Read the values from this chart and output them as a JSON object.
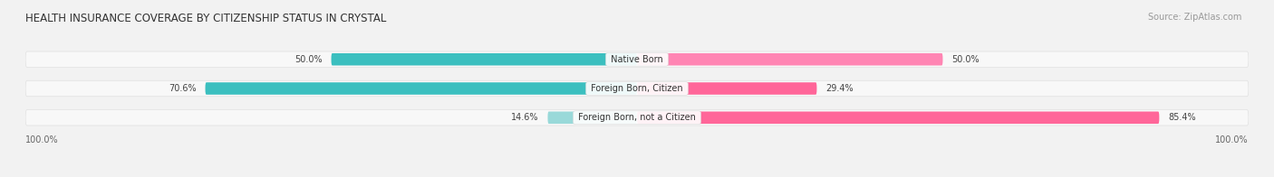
{
  "title": "HEALTH INSURANCE COVERAGE BY CITIZENSHIP STATUS IN CRYSTAL",
  "source": "Source: ZipAtlas.com",
  "categories": [
    "Native Born",
    "Foreign Born, Citizen",
    "Foreign Born, not a Citizen"
  ],
  "with_coverage": [
    50.0,
    70.6,
    14.6
  ],
  "without_coverage": [
    50.0,
    29.4,
    85.4
  ],
  "colors_with": [
    "#3bbfbf",
    "#3bbfbf",
    "#99d9d9"
  ],
  "colors_without": [
    "#ff85b3",
    "#ff6699",
    "#ff6699"
  ],
  "bg_color": "#f2f2f2",
  "bar_bg_color": "#e0e0e0",
  "bar_bg_inner": "#f8f8f8",
  "title_fontsize": 8.5,
  "source_fontsize": 7,
  "label_fontsize": 7,
  "bar_label_fontsize": 7,
  "axis_label_left": "100.0%",
  "axis_label_right": "100.0%"
}
